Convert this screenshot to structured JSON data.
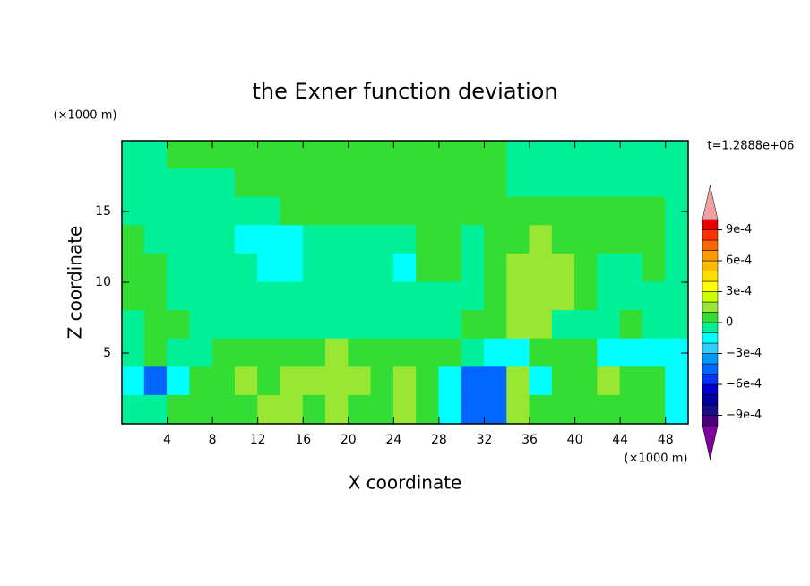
{
  "chart_data": {
    "type": "contour",
    "title": "the Exner function deviation",
    "xlabel": "X coordinate",
    "ylabel": "Z coordinate",
    "x_unit": "(×1000 m)",
    "y_unit": "(×1000 m)",
    "time_label": "t=1.2888e+06",
    "xlim": [
      0,
      50
    ],
    "ylim": [
      0,
      20
    ],
    "xticks": [
      4,
      8,
      12,
      16,
      20,
      24,
      28,
      32,
      36,
      40,
      44,
      48
    ],
    "yticks": [
      5,
      10,
      15
    ],
    "x": [
      1,
      3,
      5,
      7,
      9,
      11,
      13,
      15,
      17,
      19,
      21,
      23,
      25,
      27,
      29,
      31,
      33,
      35,
      37,
      39,
      41,
      43,
      45,
      47,
      49
    ],
    "y": [
      19,
      17,
      15,
      13,
      11,
      9,
      7,
      5,
      3,
      1
    ],
    "z": [
      [
        -5e-05,
        -5e-05,
        5e-05,
        5e-05,
        5e-05,
        5e-05,
        5e-05,
        5e-05,
        5e-05,
        5e-05,
        5e-05,
        5e-05,
        5e-05,
        5e-05,
        5e-05,
        5e-05,
        5e-05,
        -5e-05,
        -5e-05,
        -5e-05,
        -5e-05,
        -5e-05,
        -5e-05,
        -5e-05,
        -5e-05
      ],
      [
        -5e-05,
        -5e-05,
        -5e-05,
        -5e-05,
        -5e-05,
        5e-05,
        5e-05,
        5e-05,
        5e-05,
        5e-05,
        5e-05,
        5e-05,
        5e-05,
        5e-05,
        5e-05,
        5e-05,
        5e-05,
        -5e-05,
        -5e-05,
        -5e-05,
        -5e-05,
        -5e-05,
        -5e-05,
        -5e-05,
        -5e-05
      ],
      [
        -5e-05,
        -5e-05,
        -5e-05,
        -5e-05,
        -5e-05,
        -5e-05,
        -5e-05,
        5e-05,
        5e-05,
        5e-05,
        5e-05,
        5e-05,
        5e-05,
        5e-05,
        5e-05,
        5e-05,
        5e-05,
        5e-05,
        5e-05,
        5e-05,
        5e-05,
        5e-05,
        5e-05,
        5e-05,
        -5e-05
      ],
      [
        5e-05,
        -5e-05,
        -5e-05,
        -5e-05,
        -5e-05,
        -0.00015,
        -0.00015,
        -0.00015,
        -5e-05,
        -5e-05,
        -5e-05,
        -5e-05,
        -5e-05,
        5e-05,
        5e-05,
        -5e-05,
        5e-05,
        5e-05,
        0.00015,
        5e-05,
        5e-05,
        5e-05,
        5e-05,
        5e-05,
        -5e-05
      ],
      [
        5e-05,
        5e-05,
        -5e-05,
        -5e-05,
        -5e-05,
        -5e-05,
        -0.00015,
        -0.00015,
        -5e-05,
        -5e-05,
        -5e-05,
        -5e-05,
        -0.00015,
        5e-05,
        5e-05,
        -5e-05,
        5e-05,
        0.00015,
        0.00015,
        0.00015,
        5e-05,
        -5e-05,
        -5e-05,
        5e-05,
        -5e-05
      ],
      [
        5e-05,
        5e-05,
        -5e-05,
        -5e-05,
        -5e-05,
        -5e-05,
        -5e-05,
        -5e-05,
        -5e-05,
        -5e-05,
        -5e-05,
        -5e-05,
        -5e-05,
        -5e-05,
        -5e-05,
        -5e-05,
        5e-05,
        0.00015,
        0.00015,
        0.00015,
        5e-05,
        -5e-05,
        -5e-05,
        -5e-05,
        -5e-05
      ],
      [
        -5e-05,
        5e-05,
        5e-05,
        -5e-05,
        -5e-05,
        -5e-05,
        -5e-05,
        -5e-05,
        -5e-05,
        -5e-05,
        -5e-05,
        -5e-05,
        -5e-05,
        -5e-05,
        -5e-05,
        5e-05,
        5e-05,
        0.00015,
        0.00015,
        -5e-05,
        -5e-05,
        -5e-05,
        5e-05,
        -5e-05,
        -5e-05
      ],
      [
        -5e-05,
        5e-05,
        -5e-05,
        -5e-05,
        5e-05,
        5e-05,
        5e-05,
        5e-05,
        5e-05,
        0.00015,
        5e-05,
        5e-05,
        5e-05,
        5e-05,
        5e-05,
        -5e-05,
        -0.00015,
        -0.00015,
        5e-05,
        5e-05,
        5e-05,
        -0.00015,
        -0.00015,
        -0.00015,
        -0.00015
      ],
      [
        -0.00015,
        -0.00045,
        -0.00015,
        5e-05,
        5e-05,
        0.00015,
        5e-05,
        0.00015,
        0.00015,
        0.00015,
        0.00015,
        5e-05,
        0.00015,
        5e-05,
        -0.00015,
        -0.00045,
        -0.00045,
        0.00015,
        -0.00015,
        5e-05,
        5e-05,
        0.00015,
        5e-05,
        5e-05,
        -0.00015
      ],
      [
        -5e-05,
        -5e-05,
        5e-05,
        5e-05,
        5e-05,
        5e-05,
        0.00015,
        0.00015,
        5e-05,
        0.00015,
        5e-05,
        5e-05,
        0.00015,
        5e-05,
        -0.00015,
        -0.00045,
        -0.00045,
        0.00015,
        5e-05,
        5e-05,
        5e-05,
        5e-05,
        5e-05,
        5e-05,
        -0.00015
      ]
    ],
    "levels": [
      -0.001,
      -0.0009,
      -0.0008,
      -0.0007,
      -0.0006,
      -0.0005,
      -0.0004,
      -0.0003,
      -0.0002,
      -0.0001,
      0,
      0.0001,
      0.0002,
      0.0003,
      0.0004,
      0.0005,
      0.0006,
      0.0007,
      0.0008,
      0.0009,
      0.001
    ],
    "colors": [
      "#4b0082",
      "#1a0a8c",
      "#0000a0",
      "#0000cd",
      "#0033ff",
      "#0066ff",
      "#0099ff",
      "#33ccff",
      "#00ffff",
      "#00f09a",
      "#33dd33",
      "#99e633",
      "#ccff00",
      "#ffff00",
      "#ffdd00",
      "#ffbb00",
      "#ff9900",
      "#ff6600",
      "#ff3300",
      "#ee0000"
    ],
    "under_color": "#8000a0",
    "over_color": "#f4a0a0",
    "colorbar_ticks": [
      {
        "value": 0.0009,
        "label": "9e-4"
      },
      {
        "value": 0.0006,
        "label": "6e-4"
      },
      {
        "value": 0.0003,
        "label": "3e-4"
      },
      0,
      {
        "value": -0.0003,
        "label": "−3e-4"
      },
      {
        "value": -0.0006,
        "label": "−6e-4"
      },
      {
        "value": -0.0009,
        "label": "−9e-4"
      }
    ]
  }
}
